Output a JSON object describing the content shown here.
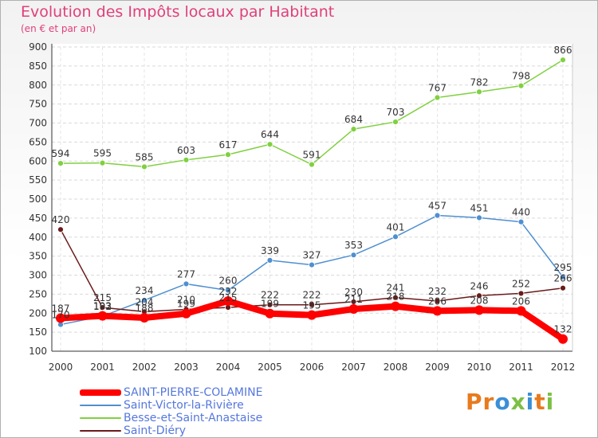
{
  "title": "Evolution des Impôts locaux par Habitant",
  "subtitle": "(en € et par an)",
  "logo": "Proxiti",
  "chart_data": {
    "type": "line",
    "title": "Evolution des Impôts locaux par Habitant",
    "subtitle": "(en € et par an)",
    "xlabel": "",
    "ylabel": "",
    "x": [
      2000,
      2001,
      2002,
      2003,
      2004,
      2005,
      2006,
      2007,
      2008,
      2009,
      2010,
      2011,
      2012
    ],
    "ylim": [
      100,
      900
    ],
    "yticks": [
      100,
      150,
      200,
      250,
      300,
      350,
      400,
      450,
      500,
      550,
      600,
      650,
      700,
      750,
      800,
      850,
      900
    ],
    "grid": true,
    "legend_position": "bottom-left",
    "series": [
      {
        "name": "SAINT-PIERRE-COLAMINE",
        "color": "#ff0000",
        "values": [
          187,
          193,
          188,
          199,
          232,
          199,
          195,
          211,
          218,
          206,
          208,
          206,
          132
        ],
        "labels": [
          "187",
          "193",
          "188",
          "199",
          "232",
          "199",
          "195",
          "211",
          "218",
          "206",
          "208",
          "206",
          "132"
        ]
      },
      {
        "name": "Saint-Victor-la-Rivière",
        "color": "#4f8fd0",
        "values": [
          170,
          192,
          234,
          277,
          260,
          339,
          327,
          353,
          401,
          457,
          451,
          440,
          295
        ],
        "labels": [
          "170",
          "192",
          "234",
          "277",
          "260",
          "339",
          "327",
          "353",
          "401",
          "457",
          "451",
          "440",
          "295"
        ]
      },
      {
        "name": "Besse-et-Saint-Anastaise",
        "color": "#80d040",
        "values": [
          594,
          595,
          585,
          603,
          617,
          644,
          591,
          684,
          703,
          767,
          782,
          798,
          866
        ],
        "labels": [
          "594",
          "595",
          "585",
          "603",
          "617",
          "644",
          "591",
          "684",
          "703",
          "767",
          "782",
          "798",
          "866"
        ]
      },
      {
        "name": "Saint-Diéry",
        "color": "#6b1a1a",
        "values": [
          420,
          215,
          204,
          210,
          215,
          222,
          222,
          230,
          241,
          232,
          246,
          252,
          266
        ],
        "labels": [
          "420",
          "215",
          "204",
          "210",
          "215",
          "222",
          "222",
          "230",
          "241",
          "232",
          "246",
          "252",
          "266"
        ]
      }
    ]
  }
}
